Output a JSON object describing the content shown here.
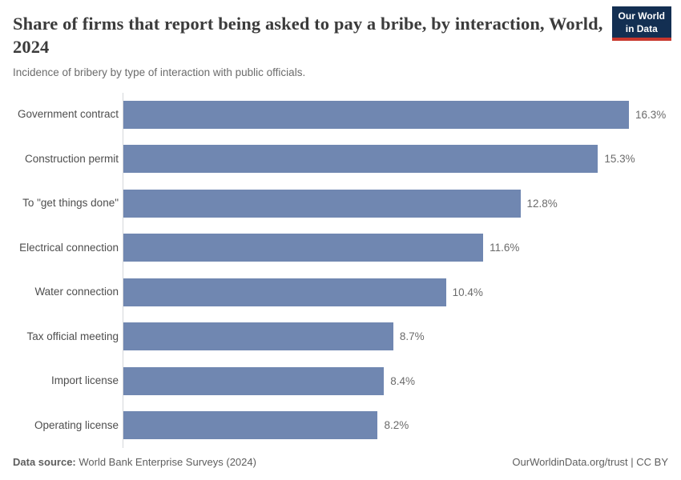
{
  "header": {
    "title": "Share of firms that report being asked to pay a bribe, by interaction, World, 2024",
    "subtitle": "Incidence of bribery by type of interaction with public officials.",
    "logo": {
      "line1": "Our World",
      "line2": "in Data"
    }
  },
  "chart_data": {
    "type": "bar",
    "orientation": "horizontal",
    "title": "Share of firms that report being asked to pay a bribe, by interaction, World, 2024",
    "subtitle": "Incidence of bribery by type of interaction with public officials.",
    "categories": [
      "Government contract",
      "Construction permit",
      "To \"get things done\"",
      "Electrical connection",
      "Water connection",
      "Tax official meeting",
      "Import license",
      "Operating license"
    ],
    "values": [
      16.3,
      15.3,
      12.8,
      11.6,
      10.4,
      8.7,
      8.4,
      8.2
    ],
    "value_labels": [
      "16.3%",
      "15.3%",
      "12.8%",
      "11.6%",
      "10.4%",
      "8.7%",
      "8.4%",
      "8.2%"
    ],
    "xlim": [
      0,
      16.3
    ],
    "bar_color": "#7087b1",
    "grid": false,
    "legend": false
  },
  "footer": {
    "source_label": "Data source:",
    "source_text": " World Bank Enterprise Surveys (2024)",
    "credit": "OurWorldinData.org/trust | CC BY"
  },
  "colors": {
    "bar": "#7087b1",
    "logo_navy": "#132f52",
    "logo_red": "#c8372d",
    "axis_line": "#d5d7da",
    "title_text": "#3b3b3b",
    "muted_text": "#6b6b6b"
  }
}
